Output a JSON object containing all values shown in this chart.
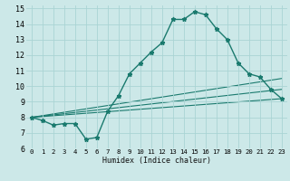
{
  "title": "",
  "xlabel": "Humidex (Indice chaleur)",
  "xlim": [
    -0.5,
    23.5
  ],
  "ylim": [
    6,
    15.2
  ],
  "xticks": [
    0,
    1,
    2,
    3,
    4,
    5,
    6,
    7,
    8,
    9,
    10,
    11,
    12,
    13,
    14,
    15,
    16,
    17,
    18,
    19,
    20,
    21,
    22,
    23
  ],
  "yticks": [
    6,
    7,
    8,
    9,
    10,
    11,
    12,
    13,
    14,
    15
  ],
  "bg_color": "#cce8e8",
  "grid_color": "#aad4d4",
  "line_color": "#1a7a6e",
  "line1_x": [
    0,
    1,
    2,
    3,
    4,
    5,
    6,
    7,
    8,
    9,
    10,
    11,
    12,
    13,
    14,
    15,
    16,
    17,
    18,
    19,
    20,
    21,
    22,
    23
  ],
  "line1_y": [
    8.0,
    7.8,
    7.5,
    7.6,
    7.6,
    6.6,
    6.7,
    8.4,
    9.4,
    10.8,
    11.5,
    12.2,
    12.8,
    14.3,
    14.3,
    14.8,
    14.6,
    13.7,
    13.0,
    11.5,
    10.8,
    10.6,
    9.8,
    9.2
  ],
  "line2_x": [
    0,
    23
  ],
  "line2_y": [
    8.0,
    9.2
  ],
  "line3_x": [
    0,
    23
  ],
  "line3_y": [
    8.0,
    9.8
  ],
  "line4_x": [
    0,
    23
  ],
  "line4_y": [
    8.0,
    10.5
  ]
}
